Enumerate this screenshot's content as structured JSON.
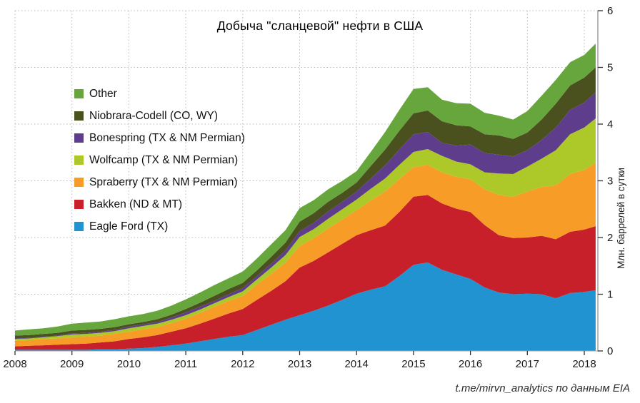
{
  "title": "Добыча \"сланцевой\" нефти в США",
  "attribution": "t.me/mirvn_analytics по данным EIA",
  "legend": {
    "items": [
      {
        "label": "Other",
        "color": "#66a63d"
      },
      {
        "label": "Niobrara-Codell (CO, WY)",
        "color": "#4a511f"
      },
      {
        "label": "Bonespring (TX & NM Permian)",
        "color": "#5f3d8d"
      },
      {
        "label": "Wolfcamp (TX & NM Permian)",
        "color": "#adc929"
      },
      {
        "label": "Spraberry (TX & NM Permian)",
        "color": "#f69c27"
      },
      {
        "label": "Bakken (ND & MT)",
        "color": "#c8202b"
      },
      {
        "label": "Eagle Ford (TX)",
        "color": "#2193d1"
      }
    ]
  },
  "chart_data": {
    "type": "area",
    "stacked": true,
    "title": "Добыча \"сланцевой\" нефти в США",
    "xlabel": "",
    "ylabel": "Млн. баррелей в сутки",
    "xticks": [
      2008,
      2009,
      2010,
      2011,
      2012,
      2013,
      2014,
      2015,
      2016,
      2017,
      2018
    ],
    "yticks": [
      0,
      1,
      2,
      3,
      4,
      5,
      6
    ],
    "ylim": [
      0,
      6
    ],
    "xlim": [
      2008,
      2018.2
    ],
    "grid": "dotted",
    "legend_position": "upper-left",
    "x": [
      2008,
      2008.25,
      2008.5,
      2008.75,
      2009,
      2009.25,
      2009.5,
      2009.75,
      2010,
      2010.25,
      2010.5,
      2010.75,
      2011,
      2011.25,
      2011.5,
      2011.75,
      2012,
      2012.25,
      2012.5,
      2012.75,
      2013,
      2013.25,
      2013.5,
      2013.75,
      2014,
      2014.25,
      2014.5,
      2014.75,
      2015,
      2015.25,
      2015.5,
      2015.75,
      2016,
      2016.25,
      2016.5,
      2016.75,
      2017,
      2017.25,
      2017.5,
      2017.75,
      2018,
      2018.2
    ],
    "series": [
      {
        "name": "Eagle Ford (TX)",
        "color": "#2193d1",
        "values": [
          0.02,
          0.02,
          0.02,
          0.02,
          0.02,
          0.02,
          0.03,
          0.03,
          0.04,
          0.05,
          0.07,
          0.1,
          0.13,
          0.17,
          0.21,
          0.25,
          0.28,
          0.37,
          0.46,
          0.55,
          0.63,
          0.71,
          0.8,
          0.9,
          1.01,
          1.08,
          1.14,
          1.32,
          1.52,
          1.56,
          1.43,
          1.35,
          1.27,
          1.12,
          1.03,
          1.0,
          1.01,
          1.0,
          0.93,
          1.02,
          1.04,
          1.07
        ]
      },
      {
        "name": "Bakken (ND & MT)",
        "color": "#c8202b",
        "values": [
          0.06,
          0.07,
          0.08,
          0.09,
          0.1,
          0.11,
          0.12,
          0.14,
          0.17,
          0.19,
          0.21,
          0.24,
          0.27,
          0.31,
          0.36,
          0.41,
          0.46,
          0.53,
          0.6,
          0.68,
          0.84,
          0.88,
          0.94,
          0.99,
          1.03,
          1.05,
          1.07,
          1.13,
          1.2,
          1.19,
          1.17,
          1.16,
          1.18,
          1.1,
          1.01,
          0.99,
          0.99,
          1.03,
          1.04,
          1.08,
          1.1,
          1.13
        ]
      },
      {
        "name": "Spraberry (TX & NM Permian)",
        "color": "#f69c27",
        "values": [
          0.1,
          0.1,
          0.11,
          0.11,
          0.12,
          0.12,
          0.12,
          0.13,
          0.13,
          0.14,
          0.14,
          0.15,
          0.17,
          0.19,
          0.21,
          0.22,
          0.23,
          0.27,
          0.3,
          0.33,
          0.38,
          0.4,
          0.42,
          0.43,
          0.44,
          0.52,
          0.6,
          0.58,
          0.52,
          0.53,
          0.55,
          0.56,
          0.58,
          0.63,
          0.71,
          0.73,
          0.81,
          0.86,
          0.95,
          1.02,
          1.05,
          1.12
        ]
      },
      {
        "name": "Wolfcamp (TX & NM Permian)",
        "color": "#adc929",
        "values": [
          0.03,
          0.03,
          0.03,
          0.04,
          0.05,
          0.05,
          0.05,
          0.05,
          0.06,
          0.06,
          0.06,
          0.06,
          0.06,
          0.06,
          0.06,
          0.07,
          0.08,
          0.09,
          0.11,
          0.13,
          0.16,
          0.16,
          0.17,
          0.18,
          0.19,
          0.21,
          0.23,
          0.25,
          0.27,
          0.28,
          0.29,
          0.27,
          0.26,
          0.3,
          0.38,
          0.4,
          0.44,
          0.5,
          0.62,
          0.7,
          0.75,
          0.78
        ]
      },
      {
        "name": "Bonespring (TX & NM Permian)",
        "color": "#5f3d8d",
        "values": [
          0.01,
          0.01,
          0.01,
          0.01,
          0.02,
          0.02,
          0.02,
          0.02,
          0.03,
          0.03,
          0.03,
          0.04,
          0.05,
          0.05,
          0.04,
          0.05,
          0.06,
          0.06,
          0.07,
          0.08,
          0.1,
          0.11,
          0.13,
          0.13,
          0.14,
          0.18,
          0.23,
          0.27,
          0.31,
          0.3,
          0.23,
          0.28,
          0.35,
          0.34,
          0.33,
          0.31,
          0.29,
          0.33,
          0.4,
          0.43,
          0.44,
          0.46
        ]
      },
      {
        "name": "Niobrara-Codell (CO, WY)",
        "color": "#4a511f",
        "values": [
          0.05,
          0.05,
          0.05,
          0.05,
          0.05,
          0.05,
          0.05,
          0.05,
          0.04,
          0.04,
          0.05,
          0.05,
          0.06,
          0.07,
          0.09,
          0.09,
          0.09,
          0.1,
          0.12,
          0.14,
          0.17,
          0.17,
          0.17,
          0.16,
          0.16,
          0.22,
          0.28,
          0.33,
          0.37,
          0.38,
          0.38,
          0.36,
          0.32,
          0.33,
          0.34,
          0.31,
          0.31,
          0.36,
          0.42,
          0.43,
          0.44,
          0.44
        ]
      },
      {
        "name": "Other",
        "color": "#66a63d",
        "values": [
          0.09,
          0.1,
          0.1,
          0.11,
          0.12,
          0.13,
          0.13,
          0.14,
          0.14,
          0.14,
          0.15,
          0.16,
          0.17,
          0.18,
          0.19,
          0.19,
          0.2,
          0.21,
          0.22,
          0.22,
          0.24,
          0.23,
          0.22,
          0.21,
          0.2,
          0.25,
          0.31,
          0.37,
          0.43,
          0.41,
          0.38,
          0.39,
          0.4,
          0.38,
          0.35,
          0.34,
          0.38,
          0.42,
          0.42,
          0.41,
          0.4,
          0.42
        ]
      }
    ]
  },
  "axis_style": {
    "grid_color": "#b8b8b8",
    "axis_line_color": "#a0a0a0",
    "tick_color": "#333333",
    "tick_label_color": "#1a1a1a"
  }
}
